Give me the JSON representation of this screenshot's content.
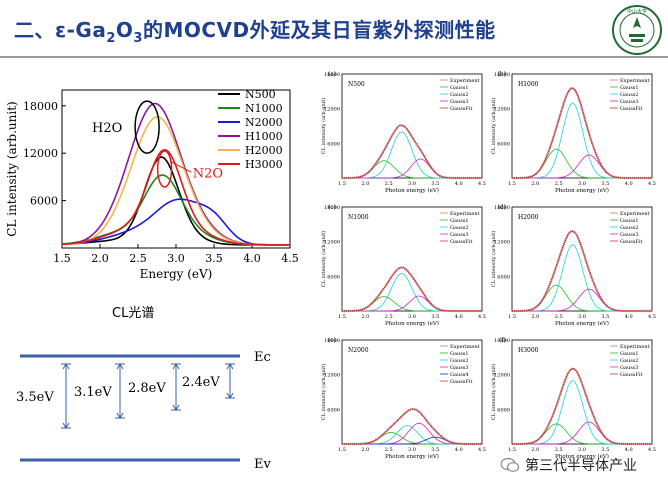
{
  "header": {
    "title_prefix": "二、ε-Ga",
    "title_sub2": "2",
    "title_mid": "O",
    "title_sub3": "3",
    "title_suffix": "的MOCVD外延及其日盲紫外探测性能",
    "logo_alt": "SUN YAT-SEN UNIVERSITY"
  },
  "main_plot": {
    "xlabel": "Energy (eV)",
    "ylabel": "CL intensity (arb.unit)",
    "yticks": [
      "18000",
      "12000",
      "6000"
    ],
    "xticks": [
      "1.5",
      "2.0",
      "2.5",
      "3.0",
      "3.5",
      "4.0",
      "4.5"
    ],
    "annot_h2o": "H2O",
    "annot_n2o": "N2O",
    "caption": "CL光谱",
    "legend": [
      {
        "label": "N500",
        "color": "#000000"
      },
      {
        "label": "N1000",
        "color": "#1a8a1a"
      },
      {
        "label": "N2000",
        "color": "#1a1adc"
      },
      {
        "label": "H1000",
        "color": "#8a1a9a"
      },
      {
        "label": "H2000",
        "color": "#f2b64a"
      },
      {
        "label": "H3000",
        "color": "#e01a1a"
      }
    ]
  },
  "band_diagram": {
    "ec_label": "Ec",
    "ev_label": "Ev",
    "levels": [
      "3.5eV",
      "3.1eV",
      "2.8eV",
      "2.4eV"
    ]
  },
  "small_plots": {
    "xlabel": "Photon energy (eV)",
    "ylabel": "CL intensity (arb.unit)",
    "yticks": [
      "18000",
      "12000",
      "6000"
    ],
    "xticks": [
      "1.5",
      "2.0",
      "2.5",
      "3.0",
      "3.5",
      "4.0",
      "4.5"
    ],
    "panels": [
      {
        "tag": "(a)",
        "name": "N500",
        "legend": [
          "Experiment",
          "Gauss1",
          "Gauss2",
          "Gauss3",
          "GaussFit"
        ]
      },
      {
        "tag": "(b)",
        "name": "H1000",
        "legend": [
          "Experiment",
          "Gauss1",
          "Gauss2",
          "Gauss3",
          "GaussFit"
        ]
      },
      {
        "tag": "(c)",
        "name": "N1000",
        "legend": [
          "Experiment",
          "Gauss1",
          "Gauss2",
          "Gauss3",
          "GaussFit"
        ]
      },
      {
        "tag": "(d)",
        "name": "H2000",
        "legend": [
          "Experiment",
          "Gauss1",
          "Gauss2",
          "Gauss3",
          "GaussFit"
        ]
      },
      {
        "tag": "(e)",
        "name": "N2000",
        "legend": [
          "Experiment",
          "Gauss1",
          "Gauss2",
          "Gauss3",
          "Gauss4",
          "GaussFit"
        ]
      },
      {
        "tag": "(f)",
        "name": "H3000",
        "legend": [
          "Experiment",
          "Gauss1",
          "Gauss2",
          "Gauss3",
          "GaussFit"
        ]
      }
    ]
  },
  "footer": {
    "text": "第三代半导体产业"
  }
}
